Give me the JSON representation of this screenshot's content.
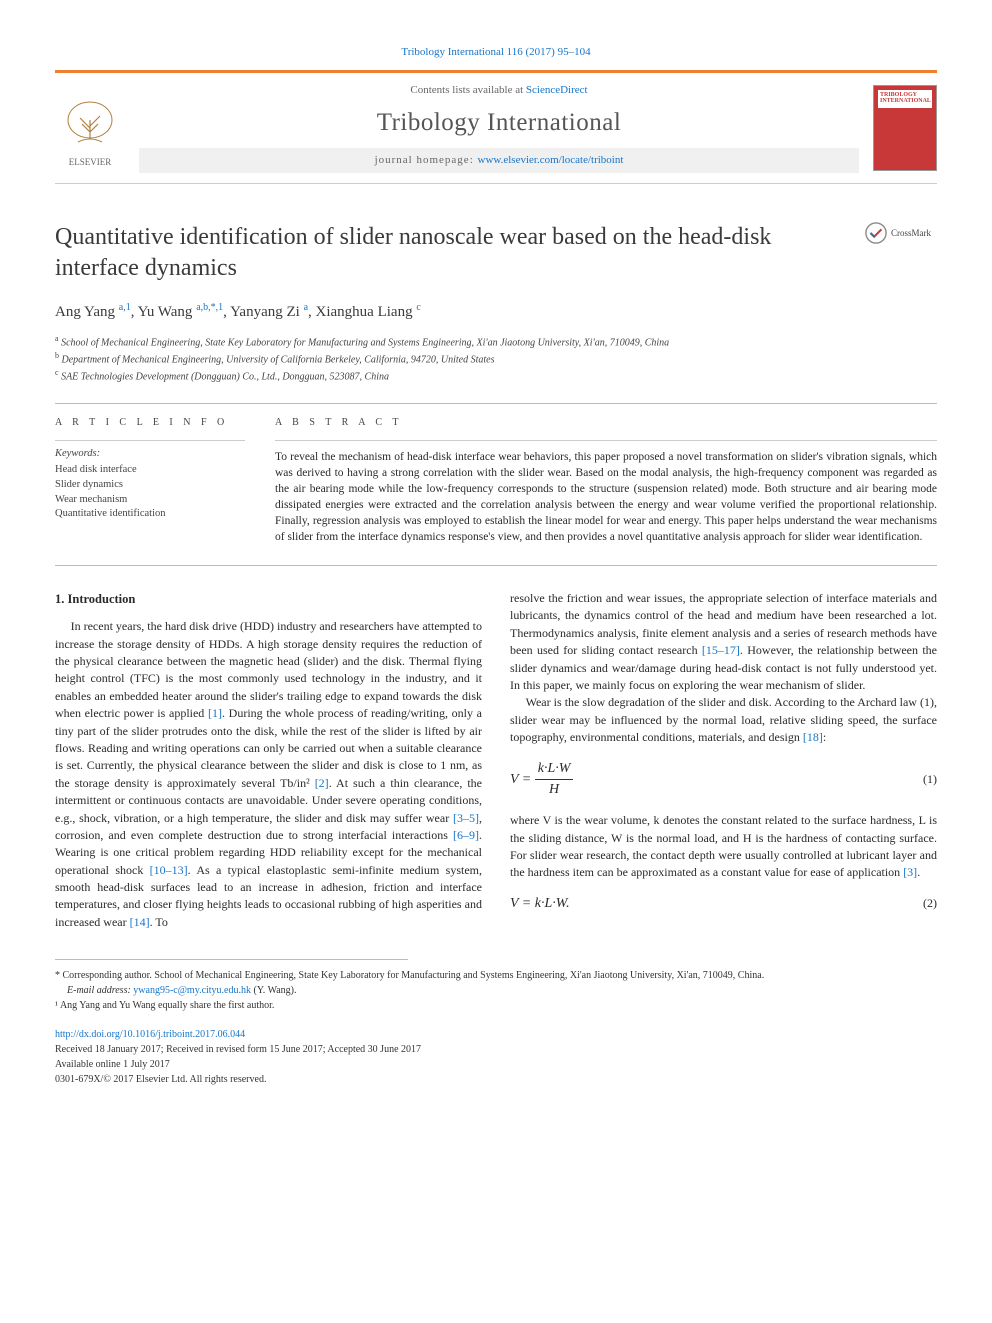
{
  "citation": "Tribology International 116 (2017) 95–104",
  "header": {
    "contents_prefix": "Contents lists available at ",
    "contents_link": "ScienceDirect",
    "journal": "Tribology International",
    "homepage_prefix": "journal homepage: ",
    "homepage_link": "www.elsevier.com/locate/triboint",
    "publisher": "ELSEVIER",
    "cover_label": "TRIBOLOGY INTERNATIONAL"
  },
  "crossmark": "CrossMark",
  "title": "Quantitative identification of slider nanoscale wear based on the head-disk interface dynamics",
  "authors_html": "Ang Yang <sup>a,1</sup>, Yu Wang <sup>a,b,*,1</sup>, Yanyang Zi <sup>a</sup>, Xianghua Liang <sup>c</sup>",
  "affiliations": [
    "a School of Mechanical Engineering, State Key Laboratory for Manufacturing and Systems Engineering, Xi'an Jiaotong University, Xi'an, 710049, China",
    "b Department of Mechanical Engineering, University of California Berkeley, California, 94720, United States",
    "c SAE Technologies Development (Dongguan) Co., Ltd., Dongguan, 523087, China"
  ],
  "article_info": {
    "head": "A R T I C L E  I N F O",
    "kw_label": "Keywords:",
    "keywords": [
      "Head disk interface",
      "Slider dynamics",
      "Wear mechanism",
      "Quantitative identification"
    ]
  },
  "abstract": {
    "head": "A B S T R A C T",
    "text": "To reveal the mechanism of head-disk interface wear behaviors, this paper proposed a novel transformation on slider's vibration signals, which was derived to having a strong correlation with the slider wear. Based on the modal analysis, the high-frequency component was regarded as the air bearing mode while the low-frequency corresponds to the structure (suspension related) mode. Both structure and air bearing mode dissipated energies were extracted and the correlation analysis between the energy and wear volume verified the proportional relationship. Finally, regression analysis was employed to establish the linear model for wear and energy. This paper helps understand the wear mechanisms of slider from the interface dynamics response's view, and then provides a novel quantitative analysis approach for slider wear identification."
  },
  "sections": {
    "intro_head": "1.  Introduction",
    "left_p1_a": "In recent years, the hard disk drive (HDD) industry and researchers have attempted to increase the storage density of HDDs. A high storage density requires the reduction of the physical clearance between the magnetic head (slider) and the disk. Thermal flying height control (TFC) is the most commonly used technology in the industry, and it enables an embedded heater around the slider's trailing edge to expand towards the disk when electric power is applied ",
    "ref1": "[1]",
    "left_p1_b": ". During the whole process of reading/writing, only a tiny part of the slider protrudes onto the disk, while the rest of the slider is lifted by air flows. Reading and writing operations can only be carried out when a suitable clearance is set. Currently, the physical clearance between the slider and disk is close to 1 nm, as the storage density is approximately several Tb/in² ",
    "ref2": "[2]",
    "left_p1_c": ". At such a thin clearance, the intermittent or continuous contacts are unavoidable. Under severe operating conditions, e.g., shock, vibration, or a high temperature, the slider and disk may suffer wear ",
    "ref35": "[3–5]",
    "left_p1_d": ", corrosion, and even complete destruction due to strong interfacial interactions ",
    "ref69": "[6–9]",
    "left_p1_e": ". Wearing is one critical problem regarding HDD reliability except for the mechanical operational shock ",
    "ref1013": "[10–13]",
    "left_p1_f": ". As a typical elastoplastic semi-infinite medium system, smooth head-disk surfaces lead to an increase in adhesion, friction and interface temperatures, and closer flying heights leads to occasional rubbing of high asperities and increased wear ",
    "ref14": "[14]",
    "left_p1_g": ". To",
    "right_p1_a": "resolve the friction and wear issues, the appropriate selection of interface materials and lubricants, the dynamics control of the head and medium have been researched a lot. Thermodynamics analysis, finite element analysis and a series of research methods have been used for sliding contact research ",
    "ref1517": "[15–17]",
    "right_p1_b": ". However, the relationship between the slider dynamics and wear/damage during head-disk contact is not fully understood yet. In this paper, we mainly focus on exploring the wear mechanism of slider.",
    "right_p2_a": "Wear is the slow degradation of the slider and disk. According to the Archard law (1), slider wear may be influenced by the normal load, relative sliding speed, the surface topography, environmental conditions, materials, and design ",
    "ref18": "[18]",
    "right_p2_b": ":",
    "eq1_lhs": "V =",
    "eq1_num": "k·L·W",
    "eq1_den": "H",
    "eq1_no": "(1)",
    "right_p3_a": "where V is the wear volume, k denotes the constant related to the surface hardness, L is the sliding distance, W is the normal load, and H is the hardness of contacting surface. For slider wear research, the contact depth were usually controlled at lubricant layer and the hardness item can be approximated as a constant value for ease of application ",
    "ref3": "[3]",
    "right_p3_b": ".",
    "eq2": "V = k·L·W.",
    "eq2_no": "(2)"
  },
  "footnotes": {
    "corr": "* Corresponding author. School of Mechanical Engineering, State Key Laboratory for Manufacturing and Systems Engineering, Xi'an Jiaotong University, Xi'an, 710049, China.",
    "email_label": "E-mail address: ",
    "email": "ywang95-c@my.cityu.edu.hk",
    "email_suffix": " (Y. Wang).",
    "note1": "¹ Ang Yang and Yu Wang equally share the first author."
  },
  "doi": {
    "link": "http://dx.doi.org/10.1016/j.triboint.2017.06.044",
    "history": "Received 18 January 2017; Received in revised form 15 June 2017; Accepted 30 June 2017",
    "online": "Available online 1 July 2017",
    "copyright": "0301-679X/© 2017 Elsevier Ltd. All rights reserved."
  },
  "colors": {
    "link": "#1775c7",
    "accent": "#f08030",
    "cover": "#c93838"
  }
}
